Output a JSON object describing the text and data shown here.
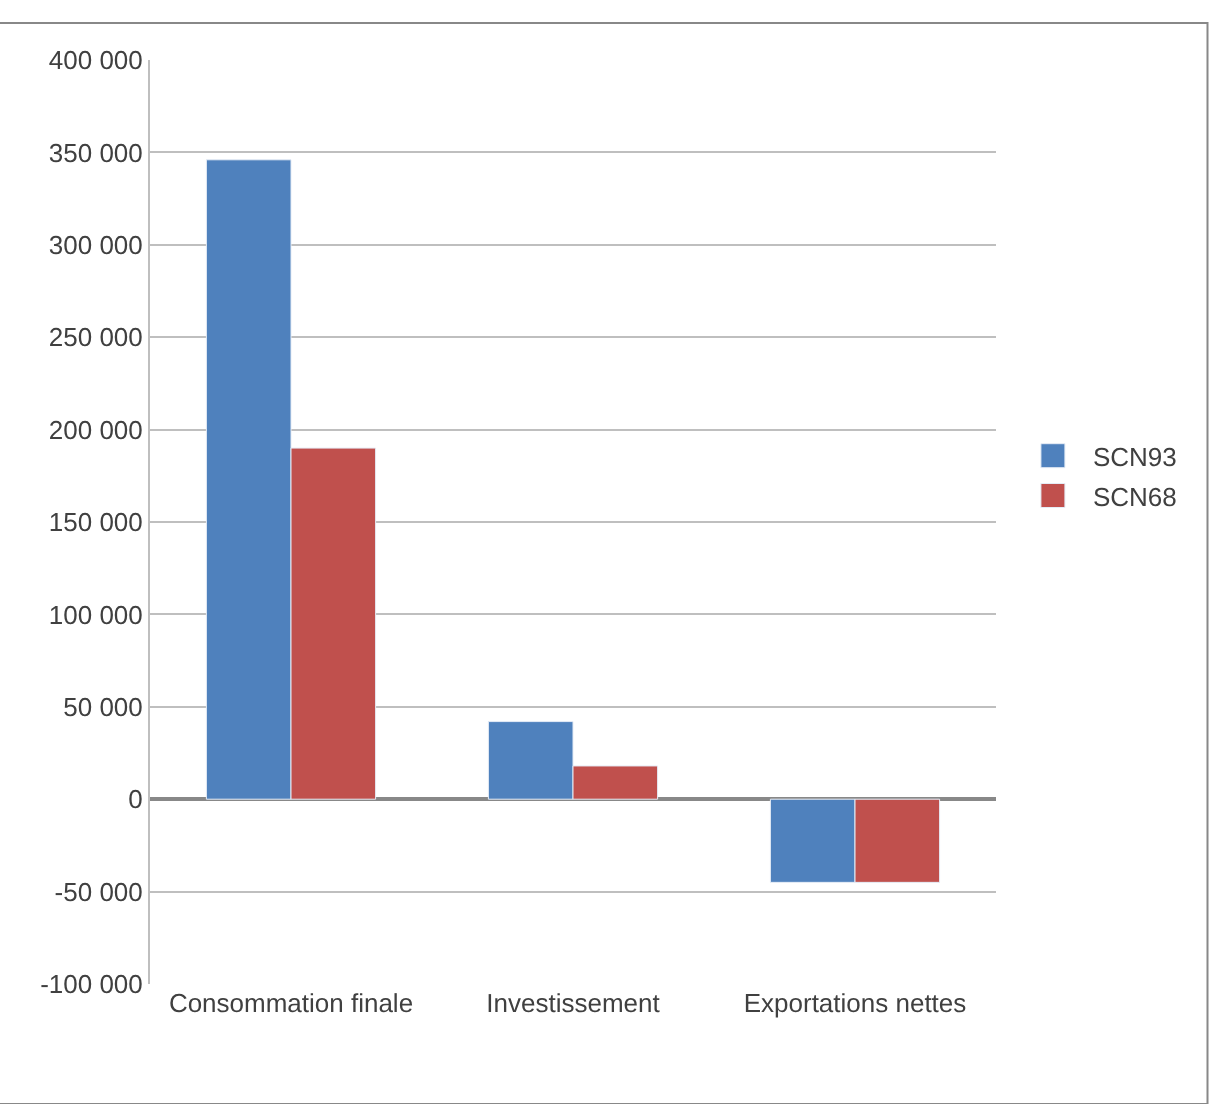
{
  "chart_data": {
    "type": "bar",
    "categories": [
      "Consommation finale",
      "Investissement",
      "Exportations nettes"
    ],
    "series": [
      {
        "name": "SCN93",
        "color": "#4f81bd",
        "values": [
          346000,
          42000,
          -45000
        ]
      },
      {
        "name": "SCN68",
        "color": "#c0504d",
        "values": [
          190000,
          18000,
          -45000
        ]
      }
    ],
    "ylim": [
      -100000,
      400000
    ],
    "yticks": [
      {
        "value": -100000,
        "label": "-100 000"
      },
      {
        "value": -50000,
        "label": "-50 000"
      },
      0,
      {
        "value": 50000,
        "label": "50 000"
      },
      {
        "value": 100000,
        "label": "100 000"
      },
      {
        "value": 150000,
        "label": "150 000"
      },
      {
        "value": 200000,
        "label": "200 000"
      },
      {
        "value": 250000,
        "label": "250 000"
      },
      {
        "value": 300000,
        "label": "300 000"
      },
      {
        "value": 350000,
        "label": "350 000"
      },
      {
        "value": 400000,
        "label": "400 000"
      }
    ],
    "grid": "y",
    "legend": "right"
  }
}
